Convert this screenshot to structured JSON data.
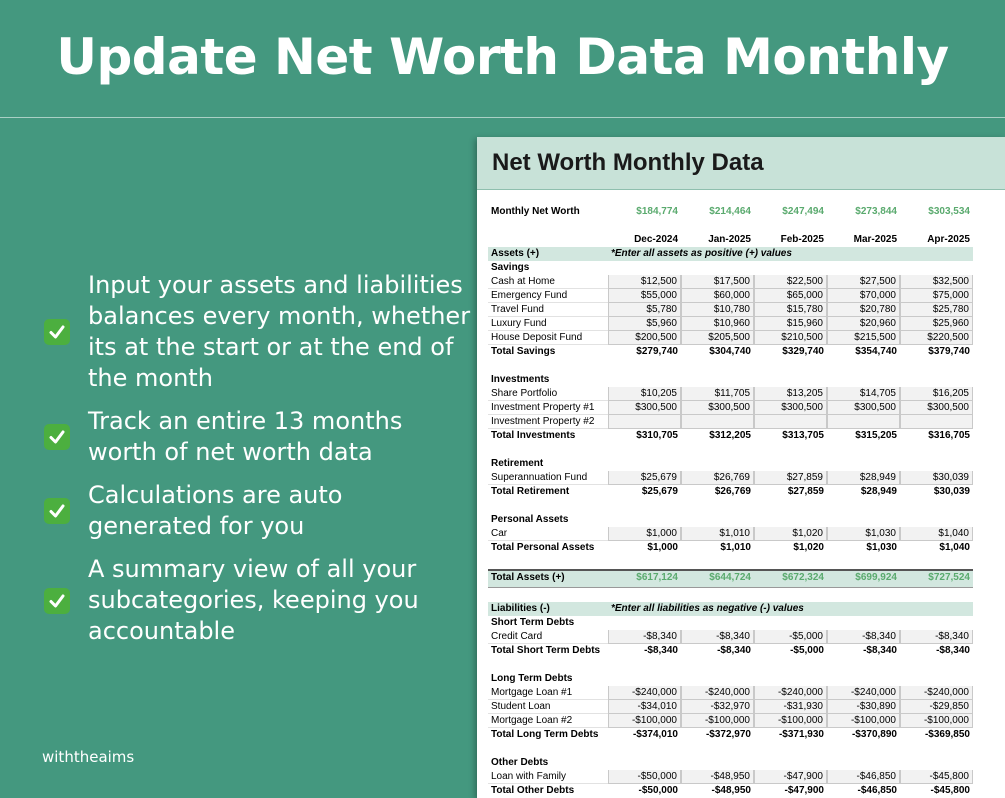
{
  "header": {
    "title": "Update Net Worth Data Monthly"
  },
  "bullets": [
    "Input your assets and liabilities balances every month, whether its at the start or at the end of the month",
    "Track an entire 13 months worth of net worth data",
    "Calculations are auto generated for you",
    "A summary view of all your subcategories, keeping you accountable"
  ],
  "brand": "withtheaims",
  "sheet": {
    "title": "Net Worth Monthly Data",
    "net_worth": {
      "label": "Monthly Net Worth",
      "values": [
        "$184,774",
        "$214,464",
        "$247,494",
        "$273,844",
        "$303,534"
      ]
    },
    "months": [
      "Dec-2024",
      "Jan-2025",
      "Feb-2025",
      "Mar-2025",
      "Apr-2025"
    ],
    "sections": [
      {
        "header": "Assets (+)",
        "note": "*Enter all assets as positive (+) values",
        "groups": [
          {
            "name": "Savings",
            "rows": [
              {
                "label": "Cash at Home",
                "values": [
                  "$12,500",
                  "$17,500",
                  "$22,500",
                  "$27,500",
                  "$32,500"
                ]
              },
              {
                "label": "Emergency Fund",
                "values": [
                  "$55,000",
                  "$60,000",
                  "$65,000",
                  "$70,000",
                  "$75,000"
                ]
              },
              {
                "label": "Travel Fund",
                "values": [
                  "$5,780",
                  "$10,780",
                  "$15,780",
                  "$20,780",
                  "$25,780"
                ]
              },
              {
                "label": "Luxury Fund",
                "values": [
                  "$5,960",
                  "$10,960",
                  "$15,960",
                  "$20,960",
                  "$25,960"
                ]
              },
              {
                "label": "House Deposit Fund",
                "values": [
                  "$200,500",
                  "$205,500",
                  "$210,500",
                  "$215,500",
                  "$220,500"
                ]
              }
            ],
            "total": {
              "label": "Total Savings",
              "values": [
                "$279,740",
                "$304,740",
                "$329,740",
                "$354,740",
                "$379,740"
              ]
            }
          },
          {
            "name": "Investments",
            "rows": [
              {
                "label": "Share Portfolio",
                "values": [
                  "$10,205",
                  "$11,705",
                  "$13,205",
                  "$14,705",
                  "$16,205"
                ]
              },
              {
                "label": "Investment Property #1",
                "values": [
                  "$300,500",
                  "$300,500",
                  "$300,500",
                  "$300,500",
                  "$300,500"
                ]
              },
              {
                "label": "Investment Property #2"
              }
            ],
            "total": {
              "label": "Total Investments",
              "values": [
                "$310,705",
                "$312,205",
                "$313,705",
                "$315,205",
                "$316,705"
              ]
            }
          },
          {
            "name": "Retirement",
            "rows": [
              {
                "label": "Superannuation Fund",
                "values": [
                  "$25,679",
                  "$26,769",
                  "$27,859",
                  "$28,949",
                  "$30,039"
                ]
              }
            ],
            "total": {
              "label": "Total Retirement",
              "values": [
                "$25,679",
                "$26,769",
                "$27,859",
                "$28,949",
                "$30,039"
              ]
            }
          },
          {
            "name": "Personal Assets",
            "rows": [
              {
                "label": "Car",
                "values": [
                  "$1,000",
                  "$1,010",
                  "$1,020",
                  "$1,030",
                  "$1,040"
                ]
              }
            ],
            "total": {
              "label": "Total Personal Assets",
              "values": [
                "$1,000",
                "$1,010",
                "$1,020",
                "$1,030",
                "$1,040"
              ]
            }
          }
        ],
        "total": {
          "label": "Total Assets (+)",
          "values": [
            "$617,124",
            "$644,724",
            "$672,324",
            "$699,924",
            "$727,524"
          ]
        }
      },
      {
        "header": "Liabilities (-)",
        "note": "*Enter all liabilities as negative (-) values",
        "groups": [
          {
            "name": "Short Term Debts",
            "rows": [
              {
                "label": "Credit Card",
                "values": [
                  "-$8,340",
                  "-$8,340",
                  "-$5,000",
                  "-$8,340",
                  "-$8,340"
                ]
              }
            ],
            "total": {
              "label": "Total Short Term Debts",
              "values": [
                "-$8,340",
                "-$8,340",
                "-$5,000",
                "-$8,340",
                "-$8,340"
              ]
            }
          },
          {
            "name": "Long Term Debts",
            "rows": [
              {
                "label": "Mortgage Loan #1",
                "values": [
                  "-$240,000",
                  "-$240,000",
                  "-$240,000",
                  "-$240,000",
                  "-$240,000"
                ]
              },
              {
                "label": "Student Loan",
                "values": [
                  "-$34,010",
                  "-$32,970",
                  "-$31,930",
                  "-$30,890",
                  "-$29,850"
                ]
              },
              {
                "label": "Mortgage Loan #2",
                "values": [
                  "-$100,000",
                  "-$100,000",
                  "-$100,000",
                  "-$100,000",
                  "-$100,000"
                ]
              }
            ],
            "total": {
              "label": "Total Long Term Debts",
              "values": [
                "-$374,010",
                "-$372,970",
                "-$371,930",
                "-$370,890",
                "-$369,850"
              ]
            }
          },
          {
            "name": "Other Debts",
            "rows": [
              {
                "label": "Loan with Family",
                "values": [
                  "-$50,000",
                  "-$48,950",
                  "-$47,900",
                  "-$46,850",
                  "-$45,800"
                ]
              }
            ],
            "total": {
              "label": "Total Other Debts",
              "values": [
                "-$50,000",
                "-$48,950",
                "-$47,900",
                "-$46,850",
                "-$45,800"
              ]
            }
          }
        ]
      }
    ]
  }
}
